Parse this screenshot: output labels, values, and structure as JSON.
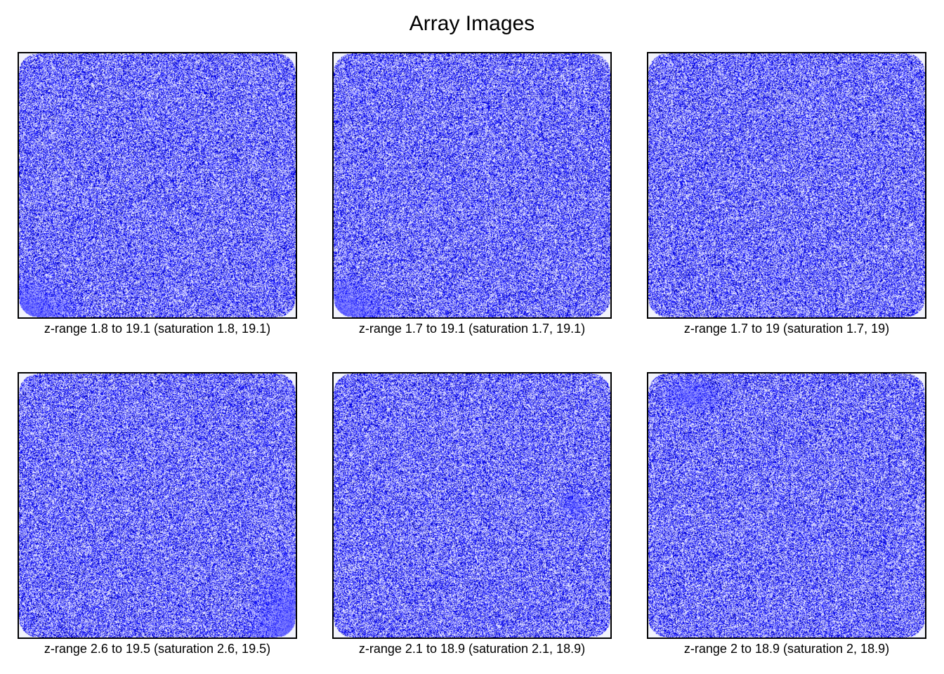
{
  "title": "Array Images",
  "chart_data": [
    {
      "type": "heatmap",
      "caption": "z-range 1.8 to 19.1 (saturation 1.8, 19.1)",
      "z_range": [
        1.8,
        19.1
      ],
      "saturation": [
        1.8,
        19.1
      ],
      "colormap": [
        "#ffffff",
        "#0000ff",
        "#000080"
      ],
      "artifact": "bottom-left"
    },
    {
      "type": "heatmap",
      "caption": "z-range 1.7 to 19.1 (saturation 1.7, 19.1)",
      "z_range": [
        1.7,
        19.1
      ],
      "saturation": [
        1.7,
        19.1
      ],
      "colormap": [
        "#ffffff",
        "#0000ff",
        "#000080"
      ],
      "artifact": "bottom-left"
    },
    {
      "type": "heatmap",
      "caption": "z-range 1.7 to 19 (saturation 1.7, 19)",
      "z_range": [
        1.7,
        19
      ],
      "saturation": [
        1.7,
        19
      ],
      "colormap": [
        "#ffffff",
        "#0000ff",
        "#000080"
      ],
      "artifact": "none"
    },
    {
      "type": "heatmap",
      "caption": "z-range 2.6 to 19.5 (saturation 2.6, 19.5)",
      "z_range": [
        2.6,
        19.5
      ],
      "saturation": [
        2.6,
        19.5
      ],
      "colormap": [
        "#ffffff",
        "#0000ff",
        "#000080"
      ],
      "artifact": "bottom-right"
    },
    {
      "type": "heatmap",
      "caption": "z-range 2.1 to 18.9 (saturation 2.1, 18.9)",
      "z_range": [
        2.1,
        18.9
      ],
      "saturation": [
        2.1,
        18.9
      ],
      "colormap": [
        "#ffffff",
        "#0000ff",
        "#000080"
      ],
      "artifact": "right-middle"
    },
    {
      "type": "heatmap",
      "caption": "z-range 2 to 18.9 (saturation 2, 18.9)",
      "z_range": [
        2,
        18.9
      ],
      "saturation": [
        2,
        18.9
      ],
      "colormap": [
        "#ffffff",
        "#0000ff",
        "#000080"
      ],
      "artifact": "top-left"
    }
  ]
}
